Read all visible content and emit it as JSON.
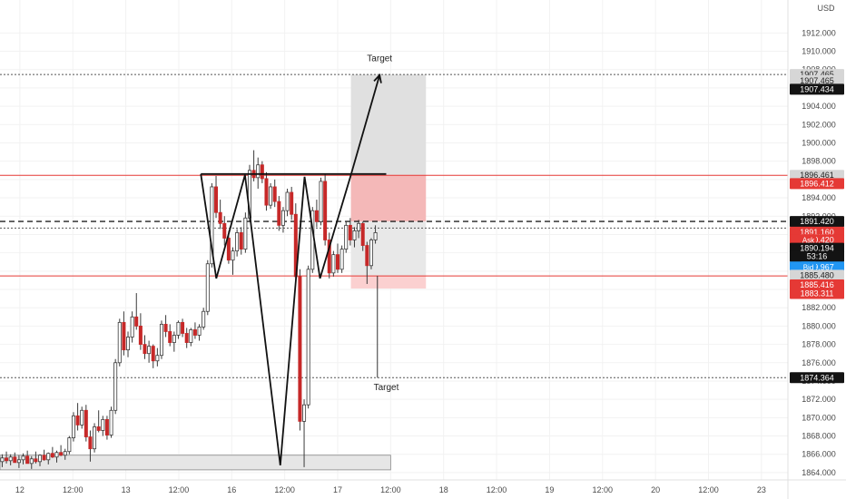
{
  "chart_data": {
    "type": "candlestick",
    "currency": "USD",
    "y_axis": {
      "ticks": [
        1864,
        1866,
        1868,
        1870,
        1872,
        1874,
        1876,
        1878,
        1880,
        1882,
        1884,
        1886,
        1888,
        1890,
        1892,
        1894,
        1896,
        1898,
        1900,
        1902,
        1904,
        1906,
        1908,
        1910,
        1912
      ],
      "tick_labels": [
        "1864.000",
        "1866.000",
        "1868.000",
        "1870.000",
        "1872.000",
        "1874.000",
        "1876.000",
        "1878.000",
        "1880.000",
        "1882.000",
        "1884.000",
        "1886.000",
        "1888.000",
        "1890.000",
        "1892.000",
        "1894.000",
        "1896.000",
        "1898.000",
        "1900.000",
        "1902.000",
        "1904.000",
        "1906.000",
        "1908.000",
        "1910.000",
        "1912.000"
      ],
      "range": [
        1863.2,
        1915.6
      ]
    },
    "x_axis": {
      "tick_labels": [
        "12",
        "12:00",
        "13",
        "12:00",
        "16",
        "12:00",
        "17",
        "12:00",
        "18",
        "12:00",
        "19",
        "12:00",
        "20",
        "12:00",
        "23"
      ],
      "tick_positions": [
        0,
        24,
        48,
        72,
        96,
        120,
        144,
        168,
        192,
        216,
        240,
        264,
        288,
        312,
        336
      ],
      "range": [
        -9,
        348
      ]
    },
    "price_tags": [
      {
        "label": "1907.465",
        "value": 1907.465,
        "style": "grey"
      },
      {
        "label": "1907.465",
        "value": 1906.8,
        "style": "grey"
      },
      {
        "label": "1907.434",
        "value": 1905.85,
        "style": "black"
      },
      {
        "label": "1896.461",
        "value": 1896.461,
        "style": "grey"
      },
      {
        "label": "1896.412",
        "value": 1895.55,
        "style": "red"
      },
      {
        "label": "1891.420",
        "value": 1891.42,
        "style": "black"
      },
      {
        "label": "1891.160",
        "value": 1890.25,
        "style": "red"
      },
      {
        "label": "1890.420",
        "value": 1889.42,
        "style": "red",
        "prefix": "Ask"
      },
      {
        "label": "1890.194",
        "value": 1888.5,
        "style": "black"
      },
      {
        "label": "53:16",
        "value": 1887.6,
        "style": "black"
      },
      {
        "label": "1889.967",
        "value": 1886.45,
        "style": "blue",
        "prefix": "Bid"
      },
      {
        "label": "1885.480",
        "value": 1885.55,
        "style": "grey"
      },
      {
        "label": "1885.416",
        "value": 1884.5,
        "style": "red"
      },
      {
        "label": "1883.311",
        "value": 1883.55,
        "style": "red"
      },
      {
        "label": "1874.364",
        "value": 1874.364,
        "style": "black"
      }
    ],
    "horizontal_lines": [
      {
        "value": 1907.465,
        "style": "dotted",
        "color": "#555555"
      },
      {
        "value": 1896.461,
        "style": "solid",
        "color": "#e53935"
      },
      {
        "value": 1891.42,
        "style": "dashed",
        "color": "#222222"
      },
      {
        "value": 1890.7,
        "style": "dotted",
        "color": "#555555"
      },
      {
        "value": 1885.48,
        "style": "solid",
        "color": "#e53935"
      },
      {
        "value": 1874.364,
        "style": "dotted",
        "color": "#555555"
      }
    ],
    "zones": [
      {
        "x0": 150,
        "x1": 184,
        "y0": 1896.461,
        "y1": 1907.465,
        "color": "#e0e0e0"
      },
      {
        "x0": 150,
        "x1": 184,
        "y0": 1891.42,
        "y1": 1896.461,
        "color": "#f4b8b8"
      },
      {
        "x0": 150,
        "x1": 184,
        "y0": 1884.1,
        "y1": 1885.48,
        "color": "#fbd0d0"
      },
      {
        "x0": 150,
        "x1": 184,
        "y0": 1885.48,
        "y1": 1891.42,
        "color": "#e8e8e8"
      },
      {
        "x0": -9,
        "x1": 168,
        "y0": 1864.3,
        "y1": 1865.9,
        "color": "#e6e6e6"
      }
    ],
    "annotations": [
      {
        "text": "Target",
        "x": 163,
        "y": 1908.9
      },
      {
        "text": "Target",
        "x": 166,
        "y": 1873.0
      }
    ],
    "pattern_path": [
      [
        82,
        1896.6
      ],
      [
        89,
        1885.2
      ],
      [
        102,
        1896.5
      ],
      [
        118,
        1864.8
      ],
      [
        129,
        1896.3
      ],
      [
        136,
        1885.2
      ],
      [
        150,
        1896.5
      ],
      [
        163,
        1907.4
      ]
    ],
    "pattern_neckline": [
      [
        82,
        1896.6
      ],
      [
        166,
        1896.6
      ]
    ],
    "target_down": [
      [
        162,
        1885.48
      ],
      [
        162,
        1874.364
      ]
    ],
    "candles": [
      [
        1865.2,
        1866.0,
        1864.6,
        1865.6
      ],
      [
        1865.6,
        1866.3,
        1865.0,
        1865.3
      ],
      [
        1865.3,
        1866.0,
        1864.8,
        1865.7
      ],
      [
        1865.7,
        1866.2,
        1865.1,
        1865.1
      ],
      [
        1865.1,
        1865.9,
        1864.5,
        1865.4
      ],
      [
        1865.4,
        1866.1,
        1864.9,
        1865.8
      ],
      [
        1865.8,
        1866.4,
        1865.2,
        1865.0
      ],
      [
        1865.0,
        1865.8,
        1864.4,
        1865.5
      ],
      [
        1865.5,
        1866.3,
        1865.0,
        1865.2
      ],
      [
        1865.2,
        1866.0,
        1864.7,
        1865.9
      ],
      [
        1865.9,
        1866.5,
        1865.3,
        1865.4
      ],
      [
        1865.4,
        1866.2,
        1864.9,
        1866.1
      ],
      [
        1866.1,
        1866.8,
        1865.6,
        1865.7
      ],
      [
        1865.7,
        1866.4,
        1865.1,
        1866.2
      ],
      [
        1866.2,
        1867.0,
        1865.8,
        1865.9
      ],
      [
        1865.9,
        1866.6,
        1865.4,
        1866.3
      ],
      [
        1866.3,
        1868.0,
        1866.0,
        1867.8
      ],
      [
        1867.8,
        1870.6,
        1867.4,
        1870.2
      ],
      [
        1870.2,
        1871.6,
        1868.6,
        1869.2
      ],
      [
        1869.2,
        1871.2,
        1868.8,
        1870.8
      ],
      [
        1870.8,
        1871.4,
        1867.4,
        1867.9
      ],
      [
        1867.9,
        1868.6,
        1865.2,
        1866.6
      ],
      [
        1866.6,
        1869.4,
        1866.2,
        1869.0
      ],
      [
        1869.0,
        1870.8,
        1868.4,
        1868.6
      ],
      [
        1868.6,
        1870.2,
        1868.0,
        1869.8
      ],
      [
        1869.8,
        1870.2,
        1867.6,
        1868.1
      ],
      [
        1868.1,
        1871.2,
        1867.8,
        1870.8
      ],
      [
        1870.8,
        1876.4,
        1870.4,
        1876.0
      ],
      [
        1876.0,
        1880.8,
        1875.6,
        1880.4
      ],
      [
        1880.4,
        1881.6,
        1876.8,
        1877.4
      ],
      [
        1877.4,
        1879.4,
        1876.6,
        1878.8
      ],
      [
        1878.8,
        1881.6,
        1878.2,
        1881.0
      ],
      [
        1881.0,
        1883.6,
        1879.6,
        1880.0
      ],
      [
        1880.0,
        1881.4,
        1877.4,
        1878.0
      ],
      [
        1878.0,
        1879.0,
        1876.4,
        1877.0
      ],
      [
        1877.0,
        1878.4,
        1876.0,
        1877.8
      ],
      [
        1877.8,
        1878.0,
        1875.4,
        1876.2
      ],
      [
        1876.2,
        1877.6,
        1875.6,
        1876.8
      ],
      [
        1876.8,
        1880.6,
        1876.4,
        1880.2
      ],
      [
        1880.2,
        1881.2,
        1878.8,
        1879.4
      ],
      [
        1879.4,
        1880.2,
        1877.8,
        1878.2
      ],
      [
        1878.2,
        1879.4,
        1877.2,
        1879.0
      ],
      [
        1879.0,
        1880.6,
        1878.6,
        1880.4
      ],
      [
        1880.4,
        1880.8,
        1878.8,
        1879.2
      ],
      [
        1879.2,
        1879.8,
        1877.6,
        1878.2
      ],
      [
        1878.2,
        1879.8,
        1877.8,
        1879.6
      ],
      [
        1879.6,
        1880.4,
        1878.6,
        1879.0
      ],
      [
        1879.0,
        1880.2,
        1878.4,
        1879.9
      ],
      [
        1879.9,
        1882.0,
        1879.6,
        1881.6
      ],
      [
        1881.6,
        1887.2,
        1881.2,
        1886.8
      ],
      [
        1886.8,
        1895.6,
        1886.4,
        1895.2
      ],
      [
        1895.2,
        1896.4,
        1891.8,
        1892.4
      ],
      [
        1892.4,
        1893.8,
        1890.6,
        1891.2
      ],
      [
        1891.2,
        1892.0,
        1888.8,
        1889.6
      ],
      [
        1889.6,
        1890.4,
        1886.8,
        1887.2
      ],
      [
        1887.2,
        1888.6,
        1885.6,
        1888.2
      ],
      [
        1888.2,
        1890.6,
        1887.6,
        1890.2
      ],
      [
        1890.2,
        1890.8,
        1887.8,
        1888.4
      ],
      [
        1888.4,
        1892.4,
        1888.0,
        1891.8
      ],
      [
        1891.8,
        1897.6,
        1891.4,
        1897.0
      ],
      [
        1897.0,
        1899.2,
        1895.8,
        1896.2
      ],
      [
        1896.2,
        1898.4,
        1895.0,
        1897.6
      ],
      [
        1897.6,
        1898.0,
        1895.6,
        1896.1
      ],
      [
        1896.1,
        1896.8,
        1892.6,
        1893.2
      ],
      [
        1893.2,
        1895.6,
        1892.8,
        1895.2
      ],
      [
        1895.2,
        1896.0,
        1893.0,
        1893.6
      ],
      [
        1893.6,
        1894.2,
        1890.4,
        1891.0
      ],
      [
        1891.0,
        1893.0,
        1890.2,
        1892.6
      ],
      [
        1892.6,
        1895.0,
        1892.0,
        1894.6
      ],
      [
        1894.6,
        1895.2,
        1891.6,
        1892.2
      ],
      [
        1892.2,
        1893.4,
        1884.6,
        1885.4
      ],
      [
        1885.4,
        1886.2,
        1868.6,
        1869.6
      ],
      [
        1869.6,
        1872.0,
        1864.6,
        1871.4
      ],
      [
        1871.4,
        1886.6,
        1871.0,
        1886.2
      ],
      [
        1886.2,
        1893.0,
        1885.8,
        1892.6
      ],
      [
        1892.6,
        1893.8,
        1890.8,
        1891.4
      ],
      [
        1891.4,
        1896.2,
        1891.0,
        1895.8
      ],
      [
        1895.8,
        1896.6,
        1888.8,
        1889.4
      ],
      [
        1889.4,
        1890.2,
        1885.2,
        1885.8
      ],
      [
        1885.8,
        1888.2,
        1885.4,
        1887.8
      ],
      [
        1887.8,
        1889.0,
        1885.8,
        1886.2
      ],
      [
        1886.2,
        1888.8,
        1885.8,
        1888.4
      ],
      [
        1888.4,
        1891.4,
        1888.0,
        1891.0
      ],
      [
        1891.0,
        1891.8,
        1888.8,
        1889.4
      ],
      [
        1889.4,
        1890.8,
        1888.6,
        1890.4
      ],
      [
        1890.4,
        1891.6,
        1889.6,
        1891.2
      ],
      [
        1891.2,
        1891.4,
        1888.2,
        1888.8
      ],
      [
        1888.8,
        1889.2,
        1884.6,
        1886.6
      ],
      [
        1886.6,
        1889.6,
        1886.2,
        1889.4
      ],
      [
        1889.4,
        1891.0,
        1889.0,
        1890.2
      ]
    ],
    "candle_x_start": -8,
    "candle_x_step": 1.9
  },
  "colors": {
    "up": "#ffffff",
    "down": "#c62828",
    "wick": "#3a3a3a",
    "grid": "#f2f2f2",
    "axis_text": "#4a4a4a",
    "pattern": "#111111"
  }
}
